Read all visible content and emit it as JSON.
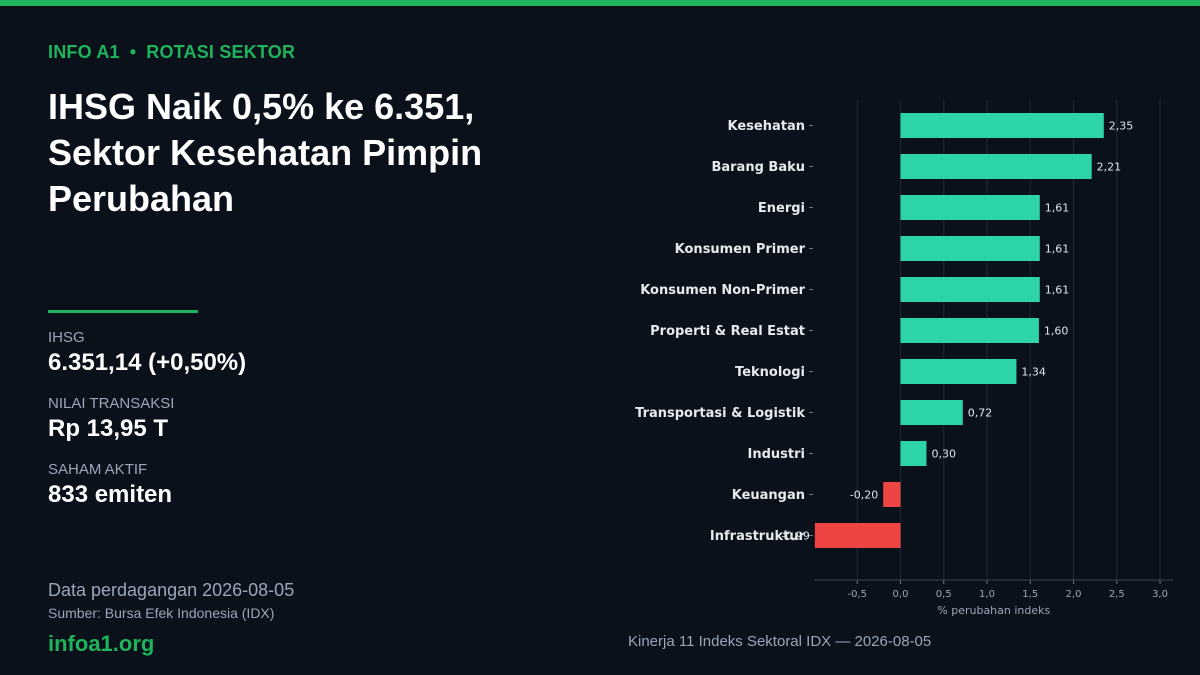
{
  "kicker": {
    "brand": "INFO A1",
    "separator": "•",
    "section": "ROTASI SEKTOR"
  },
  "headline": "IHSG Naik 0,5% ke 6.351, Sektor Kesehatan Pimpin Perubahan",
  "stats": [
    {
      "label": "IHSG",
      "value": "6.351,14  (+0,50%)"
    },
    {
      "label": "NILAI TRANSAKSI",
      "value": "Rp 13,95 T"
    },
    {
      "label": "SAHAM AKTIF",
      "value": "833 emiten"
    }
  ],
  "footer": {
    "data_date": "Data perdagangan 2026-08-05",
    "source": "Sumber: Bursa Efek Indonesia (IDX)",
    "site": "infoa1.org"
  },
  "colors": {
    "accent": "#1fb35c",
    "positive_bar": "#2dd4a8",
    "negative_bar": "#ef4444",
    "background": "#0a111b"
  },
  "chart_data": {
    "type": "bar",
    "orientation": "horizontal",
    "caption": "Kinerja 11 Indeks Sektoral IDX — 2026-08-05",
    "xlabel": "% perubahan indeks",
    "ylabel": "",
    "xlim": [
      -1.0,
      3.15
    ],
    "xticks": [
      -0.5,
      0.0,
      0.5,
      1.0,
      1.5,
      2.0,
      2.5,
      3.0
    ],
    "xtick_labels": [
      "-0,5",
      "0,0",
      "0,5",
      "1,0",
      "1,5",
      "2,0",
      "2,5",
      "3,0"
    ],
    "grid": true,
    "categories": [
      "Kesehatan",
      "Barang Baku",
      "Energi",
      "Konsumen Primer",
      "Konsumen Non-Primer",
      "Properti & Real Estat",
      "Teknologi",
      "Transportasi & Logistik",
      "Industri",
      "Keuangan",
      "Infrastruktur"
    ],
    "values": [
      2.35,
      2.21,
      1.61,
      1.61,
      1.61,
      1.6,
      1.34,
      0.72,
      0.3,
      -0.2,
      -0.99
    ],
    "value_labels": [
      "2,35",
      "2,21",
      "1,61",
      "1,61",
      "1,61",
      "1,60",
      "1,34",
      "0,72",
      "0,30",
      "-0,20",
      "-0,99"
    ]
  }
}
